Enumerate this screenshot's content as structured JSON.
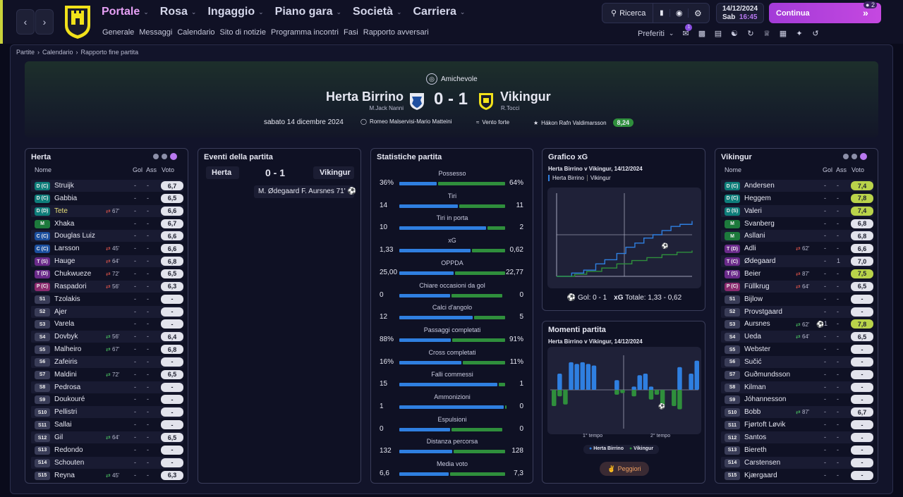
{
  "nav": {
    "menu": [
      {
        "label": "Portale",
        "active": true
      },
      {
        "label": "Rosa"
      },
      {
        "label": "Ingaggio"
      },
      {
        "label": "Piano gara"
      },
      {
        "label": "Società"
      },
      {
        "label": "Carriera"
      }
    ],
    "submenu": [
      "Generale",
      "Messaggi",
      "Calendario",
      "Sito di notizie",
      "Programma incontri",
      "Fasi",
      "Rapporto avversari"
    ],
    "search_label": "Ricerca",
    "date": "14/12/2024",
    "day": "Sab",
    "time": "16:45",
    "continue_label": "Continua",
    "notif_count": "2",
    "preferiti_label": "Preferiti",
    "inbox_badge": "1"
  },
  "breadcrumb": [
    "Partite",
    "Calendario",
    "Rapporto fine partita"
  ],
  "match": {
    "competition": "Amichevole",
    "home": "Herta Birrino",
    "away": "Vikingur",
    "home_manager": "M.Jack Nanni",
    "away_manager": "R.Tocci",
    "score": "0 - 1",
    "date": "sabato 14 dicembre 2024",
    "referees": "Romeo Malservisi-Mario Matteini",
    "weather": "Vento forte",
    "motm": "Hákon Rafn Valdimarsson",
    "motm_rating": "8,24"
  },
  "lineup_headers": {
    "name": "Nome",
    "goals": "Gol",
    "assists": "Ass",
    "rating": "Voto"
  },
  "home_panel": {
    "title": "Herta",
    "players": [
      {
        "pos": "D (C)",
        "pc": "#0e7d7a",
        "name": "Struijk",
        "g": "-",
        "a": "-",
        "v": "6,7",
        "vc": "#e2e3ec"
      },
      {
        "pos": "D (C)",
        "pc": "#0e7d7a",
        "name": "Gabbia",
        "g": "-",
        "a": "-",
        "v": "6,5",
        "vc": "#e2e3ec"
      },
      {
        "pos": "D (D)",
        "pc": "#0e7d7a",
        "name": "Tete",
        "sub": "67'",
        "subdir": "out",
        "hl": true,
        "g": "-",
        "a": "-",
        "v": "6,6",
        "vc": "#e2e3ec"
      },
      {
        "pos": "M",
        "pc": "#1d7a3c",
        "name": "Xhaka",
        "g": "-",
        "a": "-",
        "v": "6,7",
        "vc": "#e2e3ec"
      },
      {
        "pos": "C (C)",
        "pc": "#1b4f9e",
        "name": "Douglas Luiz",
        "g": "-",
        "a": "-",
        "v": "6,6",
        "vc": "#e2e3ec"
      },
      {
        "pos": "C (C)",
        "pc": "#1b4f9e",
        "name": "Larsson",
        "sub": "45'",
        "subdir": "out",
        "g": "-",
        "a": "-",
        "v": "6,6",
        "vc": "#e2e3ec"
      },
      {
        "pos": "T (S)",
        "pc": "#6a2a8a",
        "name": "Hauge",
        "sub": "64'",
        "subdir": "out",
        "g": "-",
        "a": "-",
        "v": "6,8",
        "vc": "#e2e3ec"
      },
      {
        "pos": "T (D)",
        "pc": "#6a2a8a",
        "name": "Chukwueze",
        "sub": "72'",
        "subdir": "out",
        "g": "-",
        "a": "-",
        "v": "6,5",
        "vc": "#e2e3ec"
      },
      {
        "pos": "P (C)",
        "pc": "#8a2a6e",
        "name": "Raspadori",
        "sub": "56'",
        "subdir": "out",
        "g": "-",
        "a": "-",
        "v": "6,3",
        "vc": "#e2e3ec"
      },
      {
        "pos": "S1",
        "pc": "#3a3d58",
        "name": "Tzolakis",
        "g": "-",
        "a": "-",
        "v": "-",
        "vc": "#e2e3ec"
      },
      {
        "pos": "S2",
        "pc": "#3a3d58",
        "name": "Ajer",
        "g": "-",
        "a": "-",
        "v": "-",
        "vc": "#e2e3ec"
      },
      {
        "pos": "S3",
        "pc": "#3a3d58",
        "name": "Varela",
        "g": "-",
        "a": "-",
        "v": "-",
        "vc": "#e2e3ec"
      },
      {
        "pos": "S4",
        "pc": "#3a3d58",
        "name": "Dovbyk",
        "sub": "56'",
        "subdir": "in",
        "g": "-",
        "a": "-",
        "v": "6,4",
        "vc": "#e2e3ec"
      },
      {
        "pos": "S5",
        "pc": "#3a3d58",
        "name": "Malheiro",
        "sub": "67'",
        "subdir": "in",
        "g": "-",
        "a": "-",
        "v": "6,8",
        "vc": "#e2e3ec"
      },
      {
        "pos": "S6",
        "pc": "#3a3d58",
        "name": "Zafeiris",
        "g": "-",
        "a": "-",
        "v": "-",
        "vc": "#e2e3ec"
      },
      {
        "pos": "S7",
        "pc": "#3a3d58",
        "name": "Maldini",
        "sub": "72'",
        "subdir": "in",
        "g": "-",
        "a": "-",
        "v": "6,5",
        "vc": "#e2e3ec"
      },
      {
        "pos": "S8",
        "pc": "#3a3d58",
        "name": "Pedrosa",
        "g": "-",
        "a": "-",
        "v": "-",
        "vc": "#e2e3ec"
      },
      {
        "pos": "S9",
        "pc": "#3a3d58",
        "name": "Doukouré",
        "g": "-",
        "a": "-",
        "v": "-",
        "vc": "#e2e3ec"
      },
      {
        "pos": "S10",
        "pc": "#3a3d58",
        "name": "Pellistri",
        "g": "-",
        "a": "-",
        "v": "-",
        "vc": "#e2e3ec"
      },
      {
        "pos": "S11",
        "pc": "#3a3d58",
        "name": "Sallai",
        "g": "-",
        "a": "-",
        "v": "-",
        "vc": "#e2e3ec"
      },
      {
        "pos": "S12",
        "pc": "#3a3d58",
        "name": "Gil",
        "sub": "64'",
        "subdir": "in",
        "g": "-",
        "a": "-",
        "v": "6,5",
        "vc": "#e2e3ec"
      },
      {
        "pos": "S13",
        "pc": "#3a3d58",
        "name": "Redondo",
        "g": "-",
        "a": "-",
        "v": "-",
        "vc": "#e2e3ec"
      },
      {
        "pos": "S14",
        "pc": "#3a3d58",
        "name": "Schouten",
        "g": "-",
        "a": "-",
        "v": "-",
        "vc": "#e2e3ec"
      },
      {
        "pos": "S15",
        "pc": "#3a3d58",
        "name": "Reyna",
        "sub": "45'",
        "subdir": "in",
        "g": "-",
        "a": "-",
        "v": "6,3",
        "vc": "#e2e3ec"
      }
    ]
  },
  "away_panel": {
    "title": "Vikingur",
    "players": [
      {
        "pos": "D (C)",
        "pc": "#0e7d7a",
        "name": "Andersen",
        "g": "-",
        "a": "-",
        "v": "7,4",
        "vc": "#b9d34a"
      },
      {
        "pos": "D (C)",
        "pc": "#0e7d7a",
        "name": "Heggem",
        "g": "-",
        "a": "-",
        "v": "7,8",
        "vc": "#b9d34a"
      },
      {
        "pos": "D (S)",
        "pc": "#0e7d7a",
        "name": "Valeri",
        "g": "-",
        "a": "-",
        "v": "7,4",
        "vc": "#b9d34a"
      },
      {
        "pos": "M",
        "pc": "#1d7a3c",
        "name": "Svanberg",
        "g": "-",
        "a": "-",
        "v": "6,8",
        "vc": "#e2e3ec"
      },
      {
        "pos": "M",
        "pc": "#1d7a3c",
        "name": "Asllani",
        "g": "-",
        "a": "-",
        "v": "6,8",
        "vc": "#e2e3ec"
      },
      {
        "pos": "T (D)",
        "pc": "#6a2a8a",
        "name": "Adli",
        "sub": "62'",
        "subdir": "out",
        "g": "-",
        "a": "-",
        "v": "6,6",
        "vc": "#e2e3ec"
      },
      {
        "pos": "T (C)",
        "pc": "#6a2a8a",
        "name": "Ødegaard",
        "g": "-",
        "a": "1",
        "v": "7,0",
        "vc": "#e2e3ec"
      },
      {
        "pos": "T (S)",
        "pc": "#6a2a8a",
        "name": "Beier",
        "sub": "87'",
        "subdir": "out",
        "g": "-",
        "a": "-",
        "v": "7,5",
        "vc": "#b9d34a"
      },
      {
        "pos": "P (C)",
        "pc": "#8a2a6e",
        "name": "Füllkrug",
        "sub": "64'",
        "subdir": "out",
        "g": "-",
        "a": "-",
        "v": "6,5",
        "vc": "#e2e3ec"
      },
      {
        "pos": "S1",
        "pc": "#3a3d58",
        "name": "Bijlow",
        "g": "-",
        "a": "-",
        "v": "-",
        "vc": "#e2e3ec"
      },
      {
        "pos": "S2",
        "pc": "#3a3d58",
        "name": "Provstgaard",
        "g": "-",
        "a": "-",
        "v": "-",
        "vc": "#e2e3ec"
      },
      {
        "pos": "S3",
        "pc": "#3a3d58",
        "name": "Aursnes",
        "sub": "62'",
        "subdir": "in",
        "goal": true,
        "g": "1",
        "a": "-",
        "v": "7,8",
        "vc": "#b9d34a"
      },
      {
        "pos": "S4",
        "pc": "#3a3d58",
        "name": "Ueda",
        "sub": "64'",
        "subdir": "in",
        "g": "-",
        "a": "-",
        "v": "6,5",
        "vc": "#e2e3ec"
      },
      {
        "pos": "S5",
        "pc": "#3a3d58",
        "name": "Webster",
        "g": "-",
        "a": "-",
        "v": "-",
        "vc": "#e2e3ec"
      },
      {
        "pos": "S6",
        "pc": "#3a3d58",
        "name": "Sučić",
        "g": "-",
        "a": "-",
        "v": "-",
        "vc": "#e2e3ec"
      },
      {
        "pos": "S7",
        "pc": "#3a3d58",
        "name": "Guðmundsson",
        "g": "-",
        "a": "-",
        "v": "-",
        "vc": "#e2e3ec"
      },
      {
        "pos": "S8",
        "pc": "#3a3d58",
        "name": "Kilman",
        "g": "-",
        "a": "-",
        "v": "-",
        "vc": "#e2e3ec"
      },
      {
        "pos": "S9",
        "pc": "#3a3d58",
        "name": "Jóhannesson",
        "g": "-",
        "a": "-",
        "v": "-",
        "vc": "#e2e3ec"
      },
      {
        "pos": "S10",
        "pc": "#3a3d58",
        "name": "Bobb",
        "sub": "87'",
        "subdir": "in",
        "g": "-",
        "a": "-",
        "v": "6,7",
        "vc": "#e2e3ec"
      },
      {
        "pos": "S11",
        "pc": "#3a3d58",
        "name": "Fjørtoft Løvik",
        "g": "-",
        "a": "-",
        "v": "-",
        "vc": "#e2e3ec"
      },
      {
        "pos": "S12",
        "pc": "#3a3d58",
        "name": "Santos",
        "g": "-",
        "a": "-",
        "v": "-",
        "vc": "#e2e3ec"
      },
      {
        "pos": "S13",
        "pc": "#3a3d58",
        "name": "Biereth",
        "g": "-",
        "a": "-",
        "v": "-",
        "vc": "#e2e3ec"
      },
      {
        "pos": "S14",
        "pc": "#3a3d58",
        "name": "Carstensen",
        "g": "-",
        "a": "-",
        "v": "-",
        "vc": "#e2e3ec"
      },
      {
        "pos": "S15",
        "pc": "#3a3d58",
        "name": "Kjærgaard",
        "g": "-",
        "a": "-",
        "v": "-",
        "vc": "#e2e3ec"
      }
    ]
  },
  "events": {
    "title": "Eventi della partita",
    "home": "Herta",
    "away": "Vikingur",
    "score": "0 - 1",
    "items": [
      {
        "text": "M. Ødegaard F. Aursnes 71'",
        "side": "away"
      }
    ]
  },
  "stats": {
    "title": "Statistiche partita",
    "home_color": "#2f7fe0",
    "away_color": "#2f8f3c",
    "rows": [
      {
        "label": "Possesso",
        "h": "36%",
        "a": "64%",
        "hv": 36,
        "av": 64
      },
      {
        "label": "Tiri",
        "h": "14",
        "a": "11",
        "hv": 14,
        "av": 11
      },
      {
        "label": "Tiri in porta",
        "h": "10",
        "a": "2",
        "hv": 10,
        "av": 2
      },
      {
        "label": "xG",
        "h": "1,33",
        "a": "0,62",
        "hv": 1.33,
        "av": 0.62
      },
      {
        "label": "OPPDA",
        "h": "25,00",
        "a": "22,77",
        "hv": 25,
        "av": 22.77
      },
      {
        "label": "Chiare occasioni da gol",
        "h": "0",
        "a": "0",
        "hv": 0,
        "av": 0
      },
      {
        "label": "Calci d'angolo",
        "h": "12",
        "a": "5",
        "hv": 12,
        "av": 5
      },
      {
        "label": "Passaggi completati",
        "h": "88%",
        "a": "91%",
        "hv": 88,
        "av": 91
      },
      {
        "label": "Cross completati",
        "h": "16%",
        "a": "11%",
        "hv": 16,
        "av": 11
      },
      {
        "label": "Falli commessi",
        "h": "15",
        "a": "1",
        "hv": 15,
        "av": 1
      },
      {
        "label": "Ammonizioni",
        "h": "1",
        "a": "0",
        "hv": 1,
        "av": 0
      },
      {
        "label": "Espulsioni",
        "h": "0",
        "a": "0",
        "hv": 0,
        "av": 0
      },
      {
        "label": "Distanza percorsa",
        "h": "132",
        "a": "128",
        "hv": 132,
        "av": 128
      },
      {
        "label": "Media voto",
        "h": "6,6",
        "a": "7,3",
        "hv": 6.6,
        "av": 7.3
      }
    ]
  },
  "xg": {
    "title": "Grafico xG",
    "subtitle": "Herta Birrino v Vikingur, 14/12/2024",
    "legend_home": "Herta Birrino",
    "legend_away": "Vikingur",
    "footer_goals": "Gol: 0 - 1",
    "footer_xg": "Totale: 1,33 - 0,62",
    "xg_prefix": "xG"
  },
  "chart_data": [
    {
      "type": "line",
      "title": "Grafico xG",
      "series": [
        {
          "name": "Herta Birrino",
          "color": "#2f7fe0",
          "x": [
            0,
            10,
            18,
            26,
            32,
            40,
            46,
            52,
            58,
            64,
            70,
            76,
            82,
            90
          ],
          "y": [
            0,
            0.08,
            0.15,
            0.3,
            0.4,
            0.55,
            0.7,
            0.8,
            0.92,
            1.0,
            1.1,
            1.2,
            1.25,
            1.33
          ]
        },
        {
          "name": "Vikingur",
          "color": "#2f8f3c",
          "x": [
            0,
            12,
            20,
            30,
            40,
            50,
            60,
            70,
            80,
            90
          ],
          "y": [
            0,
            0.05,
            0.12,
            0.2,
            0.3,
            0.38,
            0.45,
            0.52,
            0.58,
            0.62
          ]
        }
      ],
      "xlim": [
        0,
        90
      ],
      "ylim": [
        0,
        2
      ]
    },
    {
      "type": "bar",
      "title": "Momenti partita",
      "subtitle": "Herta Birrino v Vikingur, 14/12/2024",
      "home_values": [
        0,
        0.5,
        0,
        0.85,
        0.8,
        0.85,
        0.8,
        0.75,
        0,
        0,
        0,
        0.3,
        0,
        0,
        0.1,
        0.45,
        0.5,
        0.1,
        0,
        0,
        0,
        0,
        0.7,
        0,
        0.5,
        0.9
      ],
      "away_values": [
        -0.5,
        -0.2,
        -0.45,
        0,
        0,
        0,
        0,
        0,
        0,
        0,
        0.0,
        -0.15,
        -0.1,
        0,
        -0.2,
        0,
        0,
        -0.3,
        -0.15,
        -0.5,
        0,
        -0.5,
        -0.6,
        0,
        0,
        0
      ],
      "xlabel_first": "1° tempo",
      "xlabel_second": "2° tempo",
      "legend_home": "Herta Birrino",
      "legend_away": "Vikingur"
    }
  ],
  "momenti": {
    "title": "Momenti partita",
    "subtitle": "Herta Birrino v Vikingur, 14/12/2024",
    "first_half": "1° tempo",
    "second_half": "2° tempo",
    "legend_home": "Herta Birrino",
    "legend_away": "Vikingur",
    "peggiori_label": "Peggiori"
  }
}
